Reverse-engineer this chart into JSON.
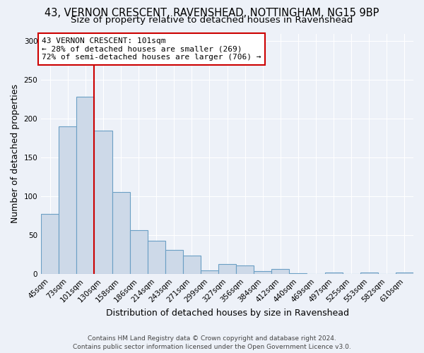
{
  "title_line1": "43, VERNON CRESCENT, RAVENSHEAD, NOTTINGHAM, NG15 9BP",
  "title_line2": "Size of property relative to detached houses in Ravenshead",
  "xlabel": "Distribution of detached houses by size in Ravenshead",
  "ylabel": "Number of detached properties",
  "bar_color": "#cdd9e8",
  "bar_edge_color": "#6b9fc4",
  "background_color": "#edf1f8",
  "grid_color": "#ffffff",
  "categories": [
    "45sqm",
    "73sqm",
    "101sqm",
    "130sqm",
    "158sqm",
    "186sqm",
    "214sqm",
    "243sqm",
    "271sqm",
    "299sqm",
    "327sqm",
    "356sqm",
    "384sqm",
    "412sqm",
    "440sqm",
    "469sqm",
    "497sqm",
    "525sqm",
    "553sqm",
    "582sqm",
    "610sqm"
  ],
  "values": [
    78,
    190,
    229,
    185,
    106,
    57,
    43,
    31,
    24,
    5,
    13,
    11,
    4,
    7,
    1,
    0,
    2,
    0,
    2,
    0,
    2
  ],
  "property_size_index": 2,
  "annotation_title": "43 VERNON CRESCENT: 101sqm",
  "annotation_line2": "← 28% of detached houses are smaller (269)",
  "annotation_line3": "72% of semi-detached houses are larger (706) →",
  "annotation_box_color": "#ffffff",
  "annotation_border_color": "#cc0000",
  "vline_color": "#cc0000",
  "ylim": [
    0,
    310
  ],
  "yticks": [
    0,
    50,
    100,
    150,
    200,
    250,
    300
  ],
  "footer_line1": "Contains HM Land Registry data © Crown copyright and database right 2024.",
  "footer_line2": "Contains public sector information licensed under the Open Government Licence v3.0.",
  "title_fontsize": 10.5,
  "subtitle_fontsize": 9.5,
  "axis_label_fontsize": 9,
  "tick_fontsize": 7.5,
  "annotation_fontsize": 8,
  "footer_fontsize": 6.5
}
